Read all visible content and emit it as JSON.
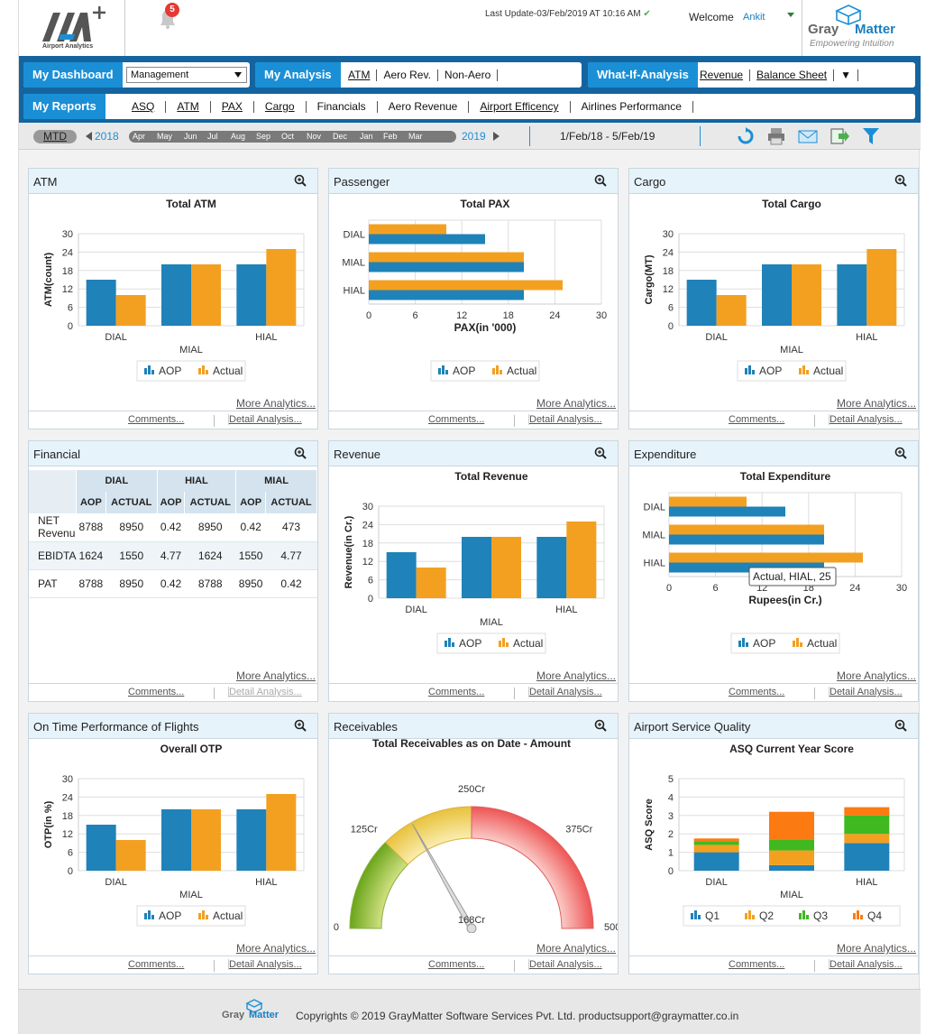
{
  "header": {
    "logo_sub": "Airport Analytics",
    "notification_count": "5",
    "last_update": "Last Update-03/Feb/2019 AT 10:16 AM",
    "welcome_label": "Welcome",
    "user": "Ankit",
    "brand_gray": "Gray",
    "brand_matter": "Matter",
    "brand_tagline": "Empowering Intuition"
  },
  "nav": {
    "my_dashboard": "My Dashboard",
    "dashboard_select": "Management",
    "my_analysis": "My Analysis",
    "analysis_links": [
      "ATM",
      "Aero Rev.",
      "Non-Aero"
    ],
    "what_if": "What-If-Analysis",
    "what_if_links": [
      "Revenue",
      "Balance Sheet"
    ],
    "my_reports": "My Reports",
    "report_links": [
      "ASQ",
      "ATM",
      "PAX",
      "Cargo",
      "Financials",
      "Aero Revenue",
      "Airport Efficency",
      "Airlines Performance"
    ]
  },
  "datebar": {
    "period": "MTD",
    "year_from": "2018",
    "year_to": "2019",
    "months": [
      "Apr",
      "May",
      "Jun",
      "Jul",
      "Aug",
      "Sep",
      "Oct",
      "Nov",
      "Dec",
      "Jan",
      "Feb",
      "Mar"
    ],
    "range": "1/Feb/18 - 5/Feb/19"
  },
  "panel_common": {
    "more": "More Analytics...",
    "comments": "Comments...",
    "detail": "Detail Analysis..."
  },
  "colors": {
    "aop": "#1f82b9",
    "actual": "#f3a021",
    "q1": "#1f82b9",
    "q2": "#f3a021",
    "q3": "#3fb91f",
    "q4": "#fb7a12"
  },
  "panels": {
    "atm": {
      "title": "ATM"
    },
    "passenger": {
      "title": "Passenger"
    },
    "cargo": {
      "title": "Cargo"
    },
    "financial": {
      "title": "Financial"
    },
    "revenue": {
      "title": "Revenue"
    },
    "expenditure": {
      "title": "Expenditure"
    },
    "otp": {
      "title": "On Time Performance of Flights"
    },
    "receivables": {
      "title": "Receivables"
    },
    "asq": {
      "title": "Airport Service Quality"
    }
  },
  "financial_table": {
    "groups": [
      "DIAL",
      "HIAL",
      "MIAL"
    ],
    "subheads": [
      "AOP",
      "ACTUAL",
      "AOP",
      "ACTUAL",
      "AOP",
      "ACTUAL"
    ],
    "rows": [
      {
        "label": "NET Revenu",
        "cells": [
          "8788",
          "8950",
          "0.42",
          "8950",
          "0.42",
          "473"
        ]
      },
      {
        "label": "EBIDTA",
        "cells": [
          "1624",
          "1550",
          "4.77",
          "1624",
          "1550",
          "4.77"
        ]
      },
      {
        "label": "PAT",
        "cells": [
          "8788",
          "8950",
          "0.42",
          "8788",
          "8950",
          "0.42"
        ]
      }
    ]
  },
  "chart_data": [
    {
      "id": "atm",
      "type": "bar",
      "title": "Total ATM",
      "ylabel": "ATM(count)",
      "xlabel": "",
      "categories": [
        "DIAL",
        "MIAL",
        "HIAL"
      ],
      "ylim": [
        0,
        30
      ],
      "yticks": [
        0,
        6,
        12,
        18,
        24,
        30
      ],
      "series": [
        {
          "name": "AOP",
          "values": [
            15,
            20,
            20
          ]
        },
        {
          "name": "Actual",
          "values": [
            10,
            20,
            25
          ]
        }
      ],
      "legend": "bottom"
    },
    {
      "id": "passenger",
      "type": "bar",
      "orientation": "horizontal",
      "title": "Total PAX",
      "xlabel": "PAX(in '000)",
      "categories": [
        "DIAL",
        "MIAL",
        "HIAL"
      ],
      "xlim": [
        0,
        30
      ],
      "xticks": [
        0,
        6,
        12,
        18,
        24,
        30
      ],
      "series": [
        {
          "name": "AOP",
          "values": [
            15,
            20,
            20
          ]
        },
        {
          "name": "Actual",
          "values": [
            10,
            20,
            25
          ]
        }
      ],
      "legend": "bottom"
    },
    {
      "id": "cargo",
      "type": "bar",
      "title": "Total Cargo",
      "ylabel": "Cargo(MT)",
      "xlabel": "",
      "categories": [
        "DIAL",
        "MIAL",
        "HIAL"
      ],
      "ylim": [
        0,
        30
      ],
      "yticks": [
        0,
        6,
        12,
        18,
        24,
        30
      ],
      "series": [
        {
          "name": "AOP",
          "values": [
            15,
            20,
            20
          ]
        },
        {
          "name": "Actual",
          "values": [
            10,
            20,
            25
          ]
        }
      ],
      "legend": "bottom"
    },
    {
      "id": "revenue",
      "type": "bar",
      "title": "Total Revenue",
      "ylabel": "Revenue(in Cr.)",
      "xlabel": "",
      "categories": [
        "DIAL",
        "MIAL",
        "HIAL"
      ],
      "ylim": [
        0,
        30
      ],
      "yticks": [
        0,
        6,
        12,
        18,
        24,
        30
      ],
      "series": [
        {
          "name": "AOP",
          "values": [
            15,
            20,
            20
          ]
        },
        {
          "name": "Actual",
          "values": [
            10,
            20,
            25
          ]
        }
      ],
      "legend": "bottom"
    },
    {
      "id": "expenditure",
      "type": "bar",
      "orientation": "horizontal",
      "title": "Total Expenditure",
      "xlabel": "Rupees(in Cr.)",
      "categories": [
        "DIAL",
        "MIAL",
        "HIAL"
      ],
      "xlim": [
        0,
        30
      ],
      "xticks": [
        0,
        6,
        12,
        18,
        24,
        30
      ],
      "series": [
        {
          "name": "AOP",
          "values": [
            15,
            20,
            20
          ]
        },
        {
          "name": "Actual",
          "values": [
            10,
            20,
            25
          ]
        }
      ],
      "legend": "bottom",
      "tooltip": "Actual, HIAL, 25"
    },
    {
      "id": "otp",
      "type": "bar",
      "title": "Overall OTP",
      "ylabel": "OTP(in %)",
      "xlabel": "",
      "categories": [
        "DIAL",
        "MIAL",
        "HIAL"
      ],
      "ylim": [
        0,
        30
      ],
      "yticks": [
        0,
        6,
        12,
        18,
        24,
        30
      ],
      "series": [
        {
          "name": "AOP",
          "values": [
            15,
            20,
            20
          ]
        },
        {
          "name": "Actual",
          "values": [
            10,
            20,
            25
          ]
        }
      ],
      "legend": "bottom"
    },
    {
      "id": "receivables",
      "type": "gauge",
      "title": "Total Receivables as on Date - Amount",
      "min": 0,
      "max": 500,
      "labels": [
        "0",
        "125Cr",
        "250Cr",
        "375Cr",
        "500"
      ],
      "value": 168,
      "value_label": "168Cr"
    },
    {
      "id": "asq",
      "type": "bar",
      "stacked": true,
      "title": "ASQ Current Year Score",
      "ylabel": "ASQ Score",
      "xlabel": "",
      "categories": [
        "DIAL",
        "MIAL",
        "HIAL"
      ],
      "ylim": [
        0,
        5
      ],
      "yticks": [
        0,
        1,
        2,
        3,
        4,
        5
      ],
      "series": [
        {
          "name": "Q1",
          "values": [
            1.0,
            0.3,
            1.5
          ]
        },
        {
          "name": "Q2",
          "values": [
            0.4,
            0.8,
            0.5
          ]
        },
        {
          "name": "Q3",
          "values": [
            0.2,
            0.6,
            1.0
          ]
        },
        {
          "name": "Q4",
          "values": [
            0.15,
            1.5,
            0.45
          ]
        }
      ],
      "legend": "bottom"
    }
  ],
  "footer": {
    "brand_gray": "Gray",
    "brand_matter": "Matter",
    "text": "Copyrights © 2019 GrayMatter Software Services Pvt. Ltd. productsupport@graymatter.co.in"
  }
}
